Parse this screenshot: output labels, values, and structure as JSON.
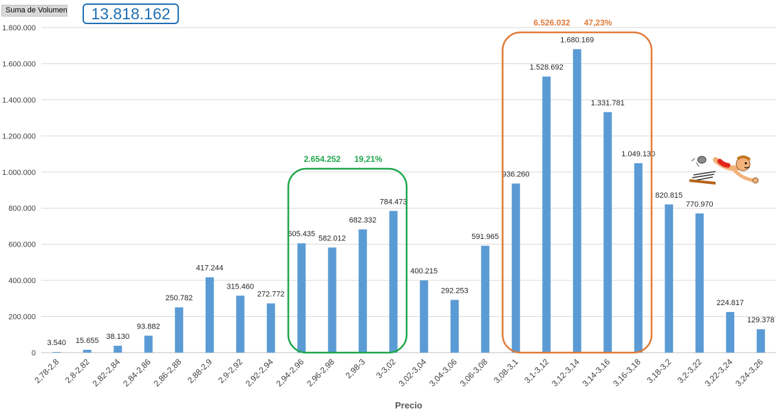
{
  "field_button": "Suma de Volumen",
  "total": "13.818.162",
  "colors": {
    "bar": "#5b9bd5",
    "green_box": "#1ea64a",
    "orange_box": "#e07b39",
    "total_box": "#1f6fb5",
    "grid": "#d9d9d9"
  },
  "chart_data": {
    "type": "bar",
    "xlabel": "Precio",
    "ylabel": "",
    "ylim": [
      0,
      1800000
    ],
    "yticks": [
      0,
      200000,
      400000,
      600000,
      800000,
      1000000,
      1200000,
      1400000,
      1600000,
      1800000
    ],
    "ytick_labels": [
      "0",
      "200.000",
      "400.000",
      "600.000",
      "800.000",
      "1.000.000",
      "1.200.000",
      "1.400.000",
      "1.600.000",
      "1.800.000"
    ],
    "grid": true,
    "categories": [
      "2,78-2,8",
      "2,8-2,82",
      "2,82-2,84",
      "2,84-2,86",
      "2,86-2,88",
      "2,88-2,9",
      "2,9-2,92",
      "2,92-2,94",
      "2,94-2,96",
      "2,96-2,98",
      "2,98-3",
      "3-3,02",
      "3,02-3,04",
      "3,04-3,06",
      "3,06-3,08",
      "3,08-3,1",
      "3,1-3,12",
      "3,12-3,14",
      "3,14-3,16",
      "3,16-3,18",
      "3,18-3,2",
      "3,2-3,22",
      "3,22-3,24",
      "3,24-3,26"
    ],
    "values": [
      3540,
      15655,
      38130,
      93882,
      250782,
      417244,
      315460,
      272772,
      605435,
      582012,
      682332,
      784473,
      400215,
      292253,
      591965,
      936260,
      1528692,
      1680169,
      1331781,
      1049130,
      820815,
      770970,
      224817,
      129378
    ],
    "value_labels": [
      "3.540",
      "15.655",
      "38.130",
      "93.882",
      "250.782",
      "417.244",
      "315.460",
      "272.772",
      "605.435",
      "582.012",
      "682.332",
      "784.473",
      "400.215",
      "292.253",
      "591.965",
      "936.260",
      "1.528.692",
      "1.680.169",
      "1.331.781",
      "1.049.130",
      "820.815",
      "770.970",
      "224.817",
      "129.378"
    ],
    "annotations": [
      {
        "name": "green",
        "from": 8,
        "to": 11,
        "volume": "2.654.252",
        "percent": "19,21%"
      },
      {
        "name": "orange",
        "from": 15,
        "to": 19,
        "volume": "6.526.032",
        "percent": "47,23%"
      }
    ]
  }
}
